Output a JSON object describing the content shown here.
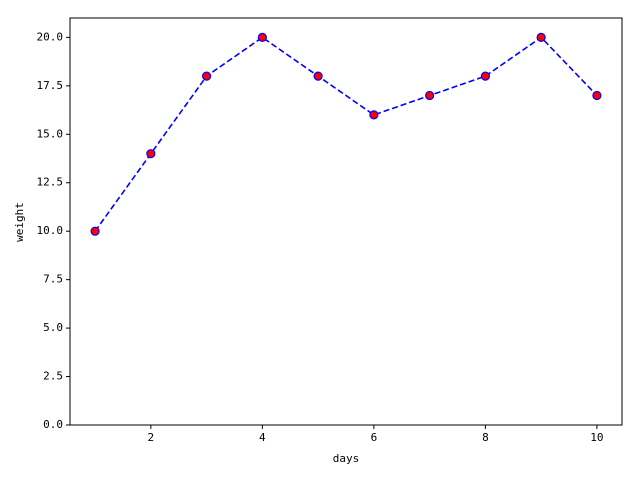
{
  "chart_data": {
    "type": "line",
    "x_label": "days",
    "y_label": "weight",
    "x": [
      1,
      2,
      3,
      4,
      5,
      6,
      7,
      8,
      9,
      10
    ],
    "series": [
      {
        "color": "#0000ff",
        "marker_color": "#ff0000",
        "values": [
          10,
          14,
          18,
          20,
          18,
          16,
          17,
          18,
          20,
          17
        ]
      }
    ],
    "xlim": [
      0.55,
      10.45
    ],
    "ylim": [
      0,
      21
    ],
    "xticks": [
      2,
      4,
      6,
      8,
      10
    ],
    "yticks": [
      {
        "value": 0,
        "label": "0.0"
      },
      {
        "value": 2.5,
        "label": "2.5"
      },
      {
        "value": 5,
        "label": "5.0"
      },
      {
        "value": 7.5,
        "label": "7.5"
      },
      {
        "value": 10,
        "label": "10.0"
      },
      {
        "value": 12.5,
        "label": "12.5"
      },
      {
        "value": 15,
        "label": "15.0"
      },
      {
        "value": 17.5,
        "label": "17.5"
      },
      {
        "value": 20,
        "label": "20.0"
      }
    ],
    "grid": false
  }
}
